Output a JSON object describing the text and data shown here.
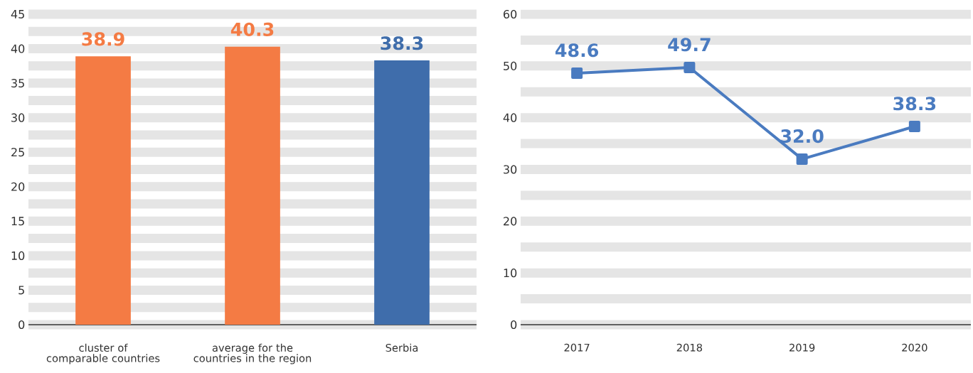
{
  "chart_data": [
    {
      "type": "bar",
      "categories": [
        "cluster of comparable countries",
        "average for the countries in the region",
        "Serbia"
      ],
      "values": [
        38.9,
        40.3,
        38.3
      ],
      "colors": [
        "#f47b44",
        "#f47b44",
        "#3f6dab"
      ],
      "ylim": [
        0,
        45
      ],
      "yticks": [
        0,
        5,
        10,
        15,
        20,
        25,
        30,
        35,
        40,
        45
      ],
      "data_labels": true,
      "grid": "y"
    },
    {
      "type": "line",
      "categories": [
        "2017",
        "2018",
        "2019",
        "2020"
      ],
      "values": [
        48.6,
        49.7,
        32.0,
        38.3
      ],
      "value_labels": [
        "48.6",
        "49.7",
        "32.0",
        "38.3"
      ],
      "color": "#4a7bc0",
      "marker": "square",
      "ylim": [
        0,
        60
      ],
      "yticks": [
        0,
        10,
        20,
        30,
        40,
        50,
        60
      ],
      "grid": "y"
    }
  ]
}
